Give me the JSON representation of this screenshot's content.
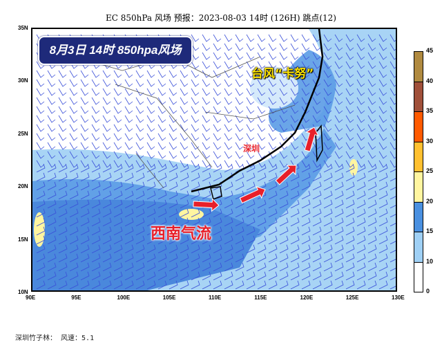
{
  "title": "EC 850hPa 风场  预报：2023-08-03 14时 (126H) 跳点(12)",
  "badge": "8月3日 14时 850hpa风场",
  "annotations": {
    "typhoon": "台风“卡努”",
    "city": "深圳",
    "flow": "西南气流"
  },
  "x_ticks": [
    "90E",
    "95E",
    "100E",
    "105E",
    "110E",
    "115E",
    "120E",
    "125E",
    "130E"
  ],
  "y_ticks": [
    "35N",
    "30N",
    "25N",
    "20N",
    "15N",
    "10N"
  ],
  "colorbar": {
    "labels": [
      "0",
      "10",
      "15",
      "20",
      "25",
      "30",
      "35",
      "40",
      "45"
    ],
    "colors": [
      "#ffffff",
      "#9fd0f5",
      "#4a90e0",
      "#fff5a0",
      "#ffc030",
      "#ff5a00",
      "#a0503a",
      "#b08a40"
    ]
  },
  "footer": {
    "station": "深圳竹子林：",
    "wind_label": "风速：",
    "wind_value": "5.1"
  },
  "colors": {
    "barb": "#3a4fd8",
    "arrow": "#e8202a",
    "badge": "#1e2a7a"
  }
}
